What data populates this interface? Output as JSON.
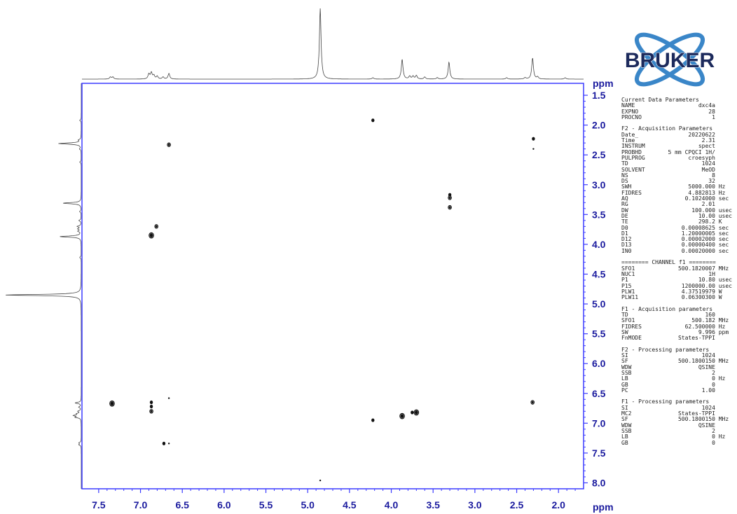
{
  "brand": {
    "name": "BRUKER",
    "colors": {
      "dark": "#1c2a5c",
      "orbit": "#3a86c8"
    }
  },
  "chart_data": {
    "type": "scatter",
    "title": "",
    "xlabel": "ppm",
    "ylabel": "ppm",
    "xlim": [
      7.7,
      1.7
    ],
    "ylim": [
      1.3,
      8.1
    ],
    "x_reversed": true,
    "y_reversed": true,
    "x_ticks": [
      "7.5",
      "7.0",
      "6.5",
      "6.0",
      "5.5",
      "5.0",
      "4.5",
      "4.0",
      "3.5",
      "3.0",
      "2.5",
      "2.0"
    ],
    "y_ticks": [
      "1.5",
      "2.0",
      "2.5",
      "3.0",
      "3.5",
      "4.0",
      "4.5",
      "5.0",
      "5.5",
      "6.0",
      "6.5",
      "7.0",
      "7.5",
      "8.0"
    ],
    "frame_color": "#3b3bff",
    "cross_peaks": [
      {
        "x": 4.22,
        "y": 1.92,
        "size": 1
      },
      {
        "x": 6.66,
        "y": 2.33,
        "size": 2
      },
      {
        "x": 2.3,
        "y": 2.23,
        "size": 1
      },
      {
        "x": 2.3,
        "y": 2.4,
        "size": 0
      },
      {
        "x": 3.3,
        "y": 3.17,
        "size": 1
      },
      {
        "x": 3.3,
        "y": 3.22,
        "size": 2
      },
      {
        "x": 3.3,
        "y": 3.38,
        "size": 2
      },
      {
        "x": 6.81,
        "y": 3.7,
        "size": 2
      },
      {
        "x": 6.87,
        "y": 3.85,
        "size": 3
      },
      {
        "x": 6.66,
        "y": 6.58,
        "size": 0
      },
      {
        "x": 7.34,
        "y": 6.67,
        "size": 3
      },
      {
        "x": 6.87,
        "y": 6.65,
        "size": 1
      },
      {
        "x": 6.87,
        "y": 6.72,
        "size": 1
      },
      {
        "x": 6.87,
        "y": 6.8,
        "size": 2
      },
      {
        "x": 2.31,
        "y": 6.65,
        "size": 2
      },
      {
        "x": 3.87,
        "y": 6.88,
        "size": 3
      },
      {
        "x": 3.75,
        "y": 6.82,
        "size": 1
      },
      {
        "x": 3.7,
        "y": 6.82,
        "size": 3
      },
      {
        "x": 4.22,
        "y": 6.95,
        "size": 1
      },
      {
        "x": 6.72,
        "y": 7.34,
        "size": 1
      },
      {
        "x": 6.66,
        "y": 7.34,
        "size": 0
      },
      {
        "x": 4.85,
        "y": 7.96,
        "size": 0
      }
    ],
    "projection_1d": [
      {
        "ppm": 7.36,
        "height": 0.03
      },
      {
        "ppm": 7.33,
        "height": 0.03
      },
      {
        "ppm": 6.9,
        "height": 0.07
      },
      {
        "ppm": 6.87,
        "height": 0.09
      },
      {
        "ppm": 6.84,
        "height": 0.05
      },
      {
        "ppm": 6.8,
        "height": 0.04
      },
      {
        "ppm": 6.73,
        "height": 0.03
      },
      {
        "ppm": 6.66,
        "height": 0.08
      },
      {
        "ppm": 4.85,
        "height": 1.0
      },
      {
        "ppm": 4.22,
        "height": 0.02
      },
      {
        "ppm": 3.87,
        "height": 0.28
      },
      {
        "ppm": 3.78,
        "height": 0.04
      },
      {
        "ppm": 3.74,
        "height": 0.04
      },
      {
        "ppm": 3.7,
        "height": 0.05
      },
      {
        "ppm": 3.6,
        "height": 0.03
      },
      {
        "ppm": 3.45,
        "height": 0.02
      },
      {
        "ppm": 3.31,
        "height": 0.24
      },
      {
        "ppm": 2.62,
        "height": 0.02
      },
      {
        "ppm": 2.4,
        "height": 0.02
      },
      {
        "ppm": 2.31,
        "height": 0.3
      },
      {
        "ppm": 2.25,
        "height": 0.03
      },
      {
        "ppm": 1.92,
        "height": 0.02
      }
    ]
  },
  "params": [
    {
      "title": "Current Data Parameters",
      "rows": [
        [
          "NAME",
          "dxc4a",
          ""
        ],
        [
          "EXPNO",
          "28",
          ""
        ],
        [
          "PROCNO",
          "1",
          ""
        ]
      ]
    },
    {
      "title": "F2 - Acquisition Parameters",
      "rows": [
        [
          "Date_",
          "20220622",
          ""
        ],
        [
          "Time",
          "2.31",
          ""
        ],
        [
          "INSTRUM",
          "spect",
          ""
        ],
        [
          "PROBHD",
          "5 mm CPQCI 1H/",
          ""
        ],
        [
          "PULPROG",
          "croesyph",
          ""
        ],
        [
          "TD",
          "1024",
          ""
        ],
        [
          "SOLVENT",
          "MeOD",
          ""
        ],
        [
          "NS",
          "8",
          ""
        ],
        [
          "DS",
          "32",
          ""
        ],
        [
          "SWH",
          "5000.000",
          "Hz"
        ],
        [
          "FIDRES",
          "4.882813",
          "Hz"
        ],
        [
          "AQ",
          "0.1024000",
          "sec"
        ],
        [
          "RG",
          "2.01",
          ""
        ],
        [
          "DW",
          "100.000",
          "usec"
        ],
        [
          "DE",
          "10.00",
          "usec"
        ],
        [
          "TE",
          "298.2",
          "K"
        ],
        [
          "D0",
          "0.00008625",
          "sec"
        ],
        [
          "D1",
          "1.20000005",
          "sec"
        ],
        [
          "D12",
          "0.00002000",
          "sec"
        ],
        [
          "D13",
          "0.00000400",
          "sec"
        ],
        [
          "IN0",
          "0.00020000",
          "sec"
        ]
      ]
    },
    {
      "title": "======== CHANNEL f1 ========",
      "rows": [
        [
          "SFO1",
          "500.1820007",
          "MHz"
        ],
        [
          "NUC1",
          "1H",
          ""
        ],
        [
          "P1",
          "10.80",
          "usec"
        ],
        [
          "P15",
          "1200000.00",
          "usec"
        ],
        [
          "PLW1",
          "4.37519979",
          "W"
        ],
        [
          "PLW11",
          "0.06300300",
          "W"
        ]
      ]
    },
    {
      "title": "F1 - Acquisition parameters",
      "rows": [
        [
          "TD",
          "160",
          ""
        ],
        [
          "SFO1",
          "500.182",
          "MHz"
        ],
        [
          "FIDRES",
          "62.500000",
          "Hz"
        ],
        [
          "SW",
          "9.996",
          "ppm"
        ],
        [
          "FnMODE",
          "States-TPPI",
          ""
        ]
      ]
    },
    {
      "title": "F2 - Processing parameters",
      "rows": [
        [
          "SI",
          "1024",
          ""
        ],
        [
          "SF",
          "500.1800150",
          "MHz"
        ],
        [
          "WDW",
          "QSINE",
          ""
        ],
        [
          "SSB",
          "2",
          ""
        ],
        [
          "LB",
          "0",
          "Hz"
        ],
        [
          "GB",
          "0",
          ""
        ],
        [
          "PC",
          "1.00",
          ""
        ]
      ]
    },
    {
      "title": "F1 - Processing parameters",
      "rows": [
        [
          "SI",
          "1024",
          ""
        ],
        [
          "MC2",
          "States-TPPI",
          ""
        ],
        [
          "SF",
          "500.1800150",
          "MHz"
        ],
        [
          "WDW",
          "QSINE",
          ""
        ],
        [
          "SSB",
          "2",
          ""
        ],
        [
          "LB",
          "0",
          "Hz"
        ],
        [
          "GB",
          "0",
          ""
        ]
      ]
    }
  ]
}
